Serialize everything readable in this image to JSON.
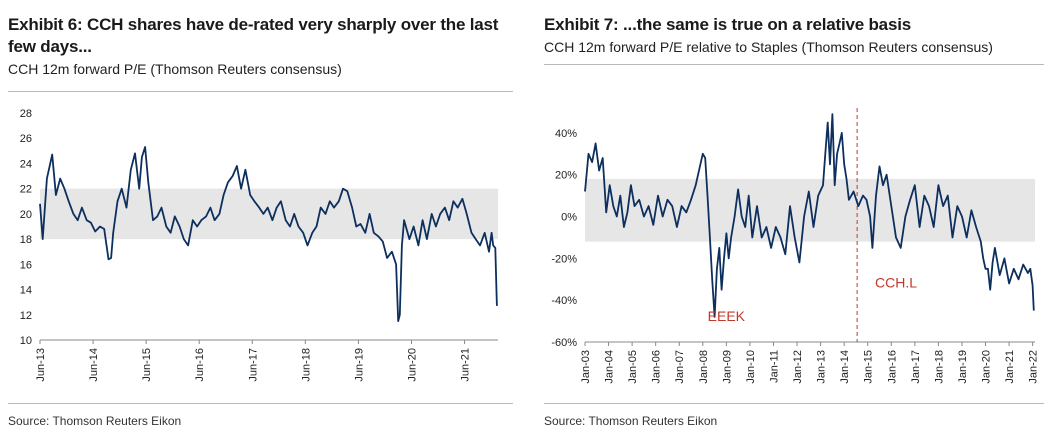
{
  "exhibits": [
    {
      "title": "Exhibit 6: CCH shares have de-rated very sharply over the last few days...",
      "subtitle": "CCH 12m forward P/E (Thomson Reuters consensus)",
      "source": "Source: Thomson Reuters Eikon"
    },
    {
      "title": "Exhibit 7: ...the same is true on a relative basis",
      "subtitle": "CCH 12m forward P/E relative to Staples (Thomson Reuters consensus)",
      "source": "Source: Thomson Reuters Eikon"
    }
  ],
  "chart_data": [
    {
      "type": "line",
      "title": "CCH 12m forward P/E (Thomson Reuters consensus)",
      "xlabel": "",
      "ylabel": "",
      "ylim": [
        10,
        28
      ],
      "yticks": [
        10,
        12,
        14,
        16,
        18,
        20,
        22,
        24,
        26,
        28
      ],
      "ytick_labels": [
        "10",
        "12",
        "14",
        "16",
        "18",
        "20",
        "22",
        "24",
        "26",
        "28"
      ],
      "xlim": [
        2013.42,
        2022.05
      ],
      "xticks": [
        2013.42,
        2014.42,
        2015.42,
        2016.42,
        2017.42,
        2018.42,
        2019.42,
        2020.42,
        2021.42
      ],
      "xtick_labels": [
        "Jun-13",
        "Jun-14",
        "Jun-15",
        "Jun-16",
        "Jun-17",
        "Jun-18",
        "Jun-19",
        "Jun-20",
        "Jun-21"
      ],
      "band": {
        "low": 18,
        "high": 22,
        "color": "#e6e6e6"
      },
      "line_color": "#0d2f5e",
      "series": [
        {
          "name": "CCH 12m forward P/E",
          "x": [
            2013.42,
            2013.47,
            2013.55,
            2013.65,
            2013.72,
            2013.8,
            2013.88,
            2013.96,
            2014.05,
            2014.13,
            2014.21,
            2014.3,
            2014.38,
            2014.46,
            2014.55,
            2014.63,
            2014.71,
            2014.76,
            2014.8,
            2014.88,
            2014.96,
            2015.05,
            2015.13,
            2015.21,
            2015.29,
            2015.34,
            2015.4,
            2015.46,
            2015.55,
            2015.63,
            2015.71,
            2015.8,
            2015.88,
            2015.96,
            2016.05,
            2016.13,
            2016.21,
            2016.3,
            2016.38,
            2016.46,
            2016.55,
            2016.63,
            2016.71,
            2016.8,
            2016.88,
            2016.96,
            2017.05,
            2017.13,
            2017.21,
            2017.29,
            2017.38,
            2017.46,
            2017.55,
            2017.63,
            2017.71,
            2017.8,
            2017.88,
            2017.96,
            2018.05,
            2018.13,
            2018.21,
            2018.29,
            2018.38,
            2018.46,
            2018.55,
            2018.63,
            2018.71,
            2018.8,
            2018.88,
            2018.96,
            2019.05,
            2019.13,
            2019.21,
            2019.3,
            2019.38,
            2019.46,
            2019.55,
            2019.63,
            2019.71,
            2019.8,
            2019.88,
            2019.96,
            2020.05,
            2020.13,
            2020.17,
            2020.2,
            2020.24,
            2020.28,
            2020.38,
            2020.46,
            2020.55,
            2020.63,
            2020.71,
            2020.8,
            2020.88,
            2020.96,
            2021.05,
            2021.13,
            2021.21,
            2021.29,
            2021.38,
            2021.46,
            2021.55,
            2021.63,
            2021.71,
            2021.8,
            2021.88,
            2021.93,
            2021.96,
            2022.0,
            2022.03
          ],
          "y": [
            20.8,
            18.0,
            22.8,
            24.7,
            21.5,
            22.8,
            22.0,
            21.0,
            20.0,
            19.5,
            20.5,
            19.5,
            19.3,
            18.6,
            19.0,
            18.8,
            16.4,
            16.5,
            18.5,
            21.0,
            22.0,
            20.5,
            23.5,
            24.8,
            22.0,
            24.5,
            25.3,
            22.5,
            19.5,
            19.8,
            20.5,
            19.0,
            18.5,
            19.8,
            19.0,
            18.0,
            17.5,
            19.5,
            19.0,
            19.5,
            19.8,
            20.5,
            19.5,
            20.0,
            21.5,
            22.5,
            23.0,
            23.8,
            22.0,
            23.5,
            21.5,
            21.0,
            20.5,
            20.0,
            20.5,
            19.5,
            20.5,
            21.0,
            19.5,
            19.0,
            20.0,
            19.0,
            18.5,
            17.5,
            18.5,
            19.0,
            20.5,
            20.0,
            21.0,
            20.5,
            21.0,
            22.0,
            21.8,
            20.5,
            19.0,
            19.2,
            18.5,
            20.0,
            18.5,
            18.2,
            17.8,
            16.5,
            17.0,
            16.0,
            11.5,
            12.0,
            17.5,
            19.5,
            18.0,
            19.0,
            17.5,
            19.5,
            18.0,
            20.0,
            19.0,
            20.0,
            20.5,
            19.5,
            21.0,
            20.5,
            21.2,
            20.0,
            18.5,
            18.0,
            17.5,
            18.5,
            17.0,
            18.5,
            17.5,
            17.3,
            12.7
          ]
        }
      ]
    },
    {
      "type": "line",
      "title": "CCH 12m forward P/E relative to Staples (Thomson Reuters consensus)",
      "xlabel": "",
      "ylabel": "",
      "ylim": [
        -60,
        50
      ],
      "yticks": [
        -60,
        -40,
        -20,
        0,
        20,
        40
      ],
      "ytick_labels": [
        "-60%",
        "-40%",
        "-20%",
        "0%",
        "20%",
        "40%"
      ],
      "xlim": [
        2003.0,
        2022.1
      ],
      "xticks": [
        2003,
        2004,
        2005,
        2006,
        2007,
        2008,
        2009,
        2010,
        2011,
        2012,
        2013,
        2014,
        2015,
        2016,
        2017,
        2018,
        2019,
        2020,
        2021,
        2022
      ],
      "xtick_labels": [
        "Jan-03",
        "Jan-04",
        "Jan-05",
        "Jan-06",
        "Jan-07",
        "Jan-08",
        "Jan-09",
        "Jan-10",
        "Jan-11",
        "Jan-12",
        "Jan-13",
        "Jan-14",
        "Jan-15",
        "Jan-16",
        "Jan-17",
        "Jan-18",
        "Jan-19",
        "Jan-20",
        "Jan-21",
        "Jan-22"
      ],
      "band": {
        "low": -12,
        "high": 18,
        "color": "#e6e6e6"
      },
      "line_color": "#0d2f5e",
      "marker_line": {
        "x": 2014.55,
        "color": "#c0392b"
      },
      "annotations": [
        {
          "text": "EEEK",
          "x": 2009.0,
          "y": -50
        },
        {
          "text": "CCH.L",
          "x": 2016.2,
          "y": -34
        }
      ],
      "series": [
        {
          "name": "CCH relative P/E vs Staples",
          "x": [
            2003.0,
            2003.15,
            2003.3,
            2003.45,
            2003.6,
            2003.75,
            2003.9,
            2004.05,
            2004.2,
            2004.35,
            2004.5,
            2004.65,
            2004.8,
            2004.95,
            2005.1,
            2005.3,
            2005.5,
            2005.7,
            2005.9,
            2006.1,
            2006.3,
            2006.5,
            2006.7,
            2006.9,
            2007.1,
            2007.3,
            2007.5,
            2007.7,
            2007.9,
            2008.0,
            2008.1,
            2008.2,
            2008.3,
            2008.4,
            2008.5,
            2008.6,
            2008.7,
            2008.8,
            2008.9,
            2009.0,
            2009.1,
            2009.2,
            2009.35,
            2009.5,
            2009.65,
            2009.8,
            2009.95,
            2010.1,
            2010.3,
            2010.5,
            2010.7,
            2010.9,
            2011.1,
            2011.3,
            2011.5,
            2011.7,
            2011.9,
            2012.1,
            2012.3,
            2012.5,
            2012.7,
            2012.9,
            2013.1,
            2013.2,
            2013.3,
            2013.4,
            2013.5,
            2013.6,
            2013.7,
            2013.8,
            2013.9,
            2014.0,
            2014.1,
            2014.2,
            2014.4,
            2014.6,
            2014.8,
            2014.95,
            2015.1,
            2015.2,
            2015.35,
            2015.5,
            2015.65,
            2015.8,
            2016.0,
            2016.2,
            2016.4,
            2016.6,
            2016.8,
            2017.0,
            2017.2,
            2017.4,
            2017.6,
            2017.8,
            2018.0,
            2018.2,
            2018.4,
            2018.6,
            2018.8,
            2019.0,
            2019.2,
            2019.4,
            2019.6,
            2019.8,
            2019.9,
            2020.0,
            2020.1,
            2020.2,
            2020.3,
            2020.4,
            2020.6,
            2020.8,
            2021.0,
            2021.2,
            2021.4,
            2021.6,
            2021.8,
            2021.9,
            2022.0,
            2022.05
          ],
          "y": [
            12,
            30,
            26,
            35,
            22,
            28,
            2,
            15,
            5,
            0,
            10,
            -5,
            2,
            15,
            5,
            8,
            0,
            5,
            -4,
            10,
            0,
            8,
            5,
            -5,
            5,
            2,
            8,
            15,
            25,
            30,
            28,
            10,
            -10,
            -30,
            -48,
            -25,
            -15,
            -35,
            -20,
            -8,
            -20,
            -10,
            0,
            13,
            0,
            -5,
            10,
            -10,
            5,
            -10,
            -5,
            -15,
            -5,
            -10,
            -18,
            5,
            -10,
            -22,
            0,
            12,
            -5,
            10,
            15,
            30,
            45,
            25,
            49,
            15,
            30,
            35,
            40,
            25,
            18,
            8,
            12,
            5,
            10,
            8,
            0,
            -15,
            10,
            24,
            15,
            20,
            5,
            -10,
            -15,
            0,
            8,
            15,
            -5,
            10,
            5,
            -5,
            15,
            5,
            10,
            -10,
            5,
            0,
            -10,
            3,
            -5,
            -12,
            -20,
            -25,
            -25,
            -35,
            -22,
            -15,
            -28,
            -20,
            -32,
            -25,
            -30,
            -23,
            -27,
            -25,
            -33,
            -45
          ]
        }
      ]
    }
  ]
}
